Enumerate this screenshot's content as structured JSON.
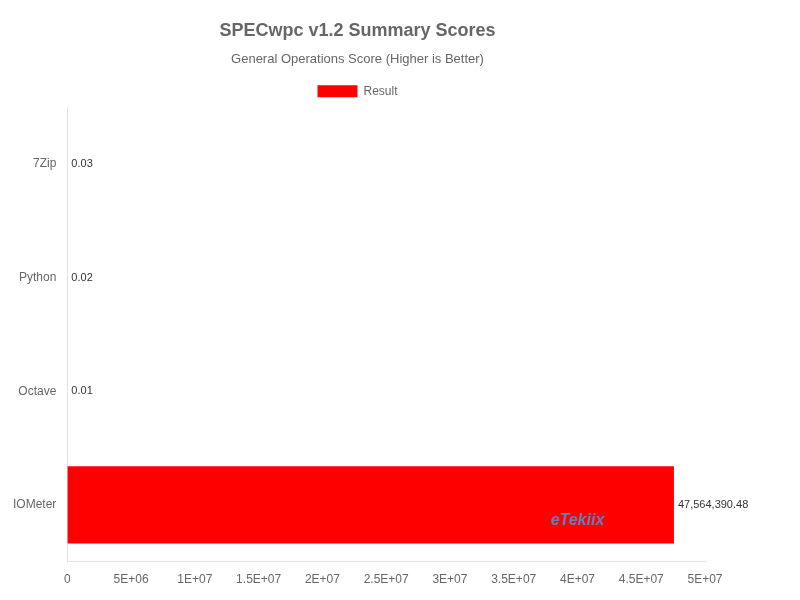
{
  "chart_data": {
    "type": "bar",
    "orientation": "horizontal",
    "title": "SPECwpc v1.2 Summary Scores",
    "subtitle": "General Operations Score (Higher is Better)",
    "categories": [
      "IOMeter",
      "Octave",
      "Python",
      "7Zip"
    ],
    "series": [
      {
        "name": "Result",
        "color": "#ff0000",
        "values": [
          47564390.48,
          0.01,
          0.02,
          0.03
        ],
        "value_labels": [
          "47,564,390.48",
          "0.01",
          "0.02",
          "0.03"
        ]
      }
    ],
    "data_labels": true,
    "xlim": [
      0,
      50000000
    ],
    "xticks": [
      0,
      {
        "value": 5000000,
        "label": "5E+06"
      },
      {
        "value": 10000000,
        "label": "1E+07"
      },
      {
        "value": 15000000,
        "label": "1.5E+07"
      },
      {
        "value": 20000000,
        "label": "2E+07"
      },
      {
        "value": 25000000,
        "label": "2.5E+07"
      },
      {
        "value": 30000000,
        "label": "3E+07"
      },
      {
        "value": 35000000,
        "label": "3.5E+07"
      },
      {
        "value": 40000000,
        "label": "4E+07"
      },
      {
        "value": 45000000,
        "label": "4.5E+07"
      },
      {
        "value": 50000000,
        "label": "5E+07"
      }
    ],
    "legend": "top",
    "grid": false,
    "annotations": [
      "eTekiix"
    ]
  }
}
